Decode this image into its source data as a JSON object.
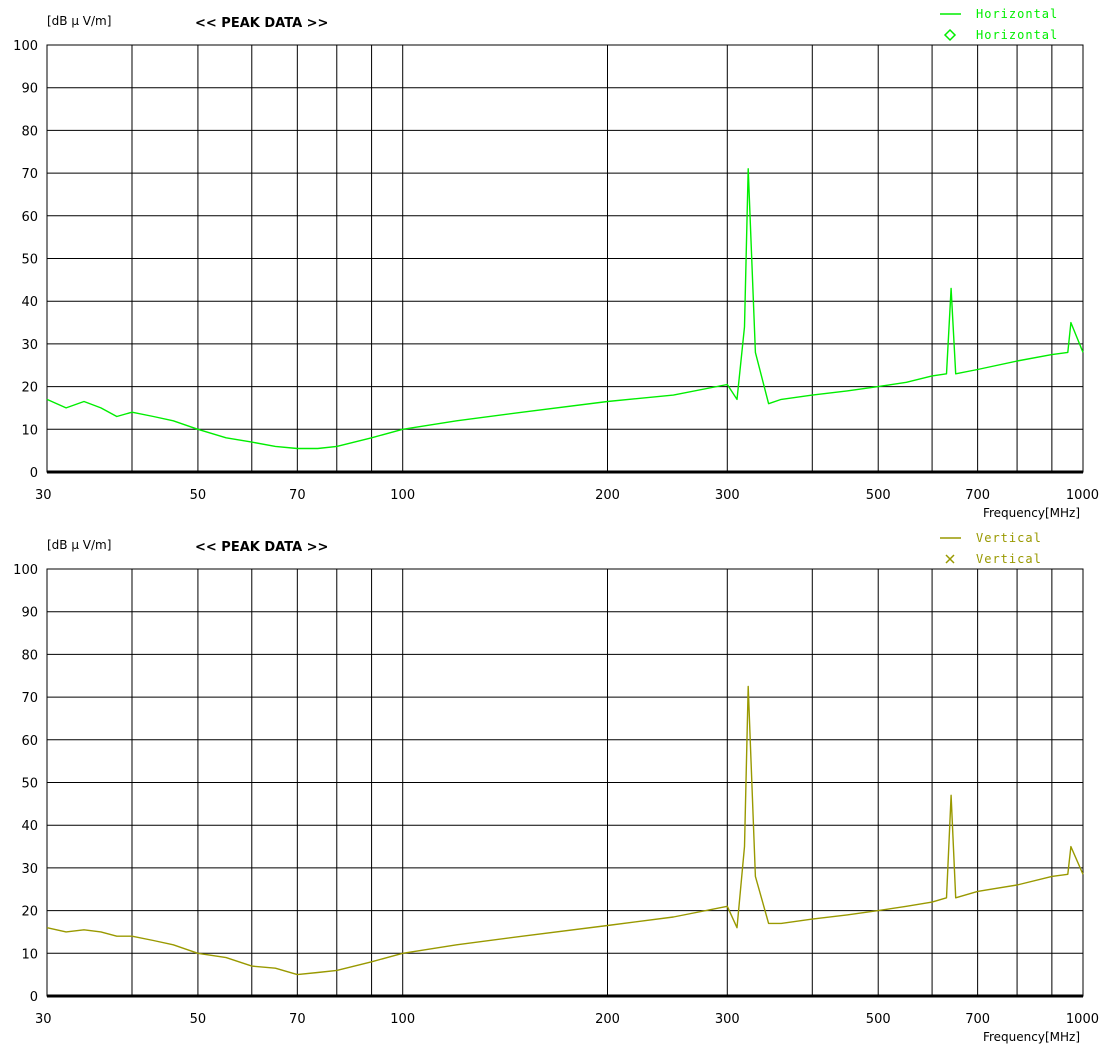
{
  "chart_data": [
    {
      "type": "line",
      "title": "<< PEAK DATA >>",
      "ylabel": "[dB μ V/m]",
      "xlabel": "Frequency[MHz]",
      "xscale": "log",
      "xlim": [
        30,
        1000
      ],
      "ylim": [
        0,
        100
      ],
      "grid": true,
      "legend_position": "top-right",
      "x_ticks": [
        "30",
        "50",
        "70",
        "100",
        "200",
        "300",
        "500",
        "700",
        "1000"
      ],
      "y_ticks": [
        "0",
        "10",
        "20",
        "30",
        "40",
        "50",
        "60",
        "70",
        "80",
        "90",
        "100"
      ],
      "legend": [
        {
          "marker": "line",
          "label": "Horizontal"
        },
        {
          "marker": "diamond",
          "label": "Horizontal"
        }
      ],
      "series": [
        {
          "name": "Horizontal",
          "color": "#00ee00",
          "x": [
            30,
            32,
            34,
            36,
            38,
            40,
            43,
            46,
            50,
            55,
            60,
            65,
            70,
            75,
            80,
            90,
            100,
            120,
            150,
            200,
            250,
            300,
            310,
            318,
            322,
            330,
            345,
            360,
            400,
            450,
            500,
            550,
            600,
            630,
            640,
            650,
            700,
            800,
            900,
            950,
            960,
            1000
          ],
          "y": [
            17,
            15,
            16.5,
            15,
            13,
            14,
            13,
            12,
            10,
            8,
            7,
            6,
            5.5,
            5.5,
            6,
            8,
            10,
            12,
            14,
            16.5,
            18,
            20.5,
            17,
            34,
            71,
            28,
            16,
            17,
            18,
            19,
            20,
            21,
            22.5,
            23,
            43,
            23,
            24,
            26,
            27.5,
            28,
            35,
            28
          ]
        }
      ]
    },
    {
      "type": "line",
      "title": "<< PEAK DATA >>",
      "ylabel": "[dB μ V/m]",
      "xlabel": "Frequency[MHz]",
      "xscale": "log",
      "xlim": [
        30,
        1000
      ],
      "ylim": [
        0,
        100
      ],
      "grid": true,
      "legend_position": "top-right",
      "x_ticks": [
        "30",
        "50",
        "70",
        "100",
        "200",
        "300",
        "500",
        "700",
        "1000"
      ],
      "y_ticks": [
        "0",
        "10",
        "20",
        "30",
        "40",
        "50",
        "60",
        "70",
        "80",
        "90",
        "100"
      ],
      "legend": [
        {
          "marker": "line",
          "label": "Vertical"
        },
        {
          "marker": "x",
          "label": "Vertical"
        }
      ],
      "series": [
        {
          "name": "Vertical",
          "color": "#999900",
          "x": [
            30,
            32,
            34,
            36,
            38,
            40,
            43,
            46,
            50,
            55,
            60,
            65,
            70,
            75,
            80,
            90,
            100,
            120,
            150,
            200,
            250,
            300,
            310,
            318,
            322,
            330,
            345,
            360,
            400,
            450,
            500,
            550,
            600,
            630,
            640,
            650,
            700,
            800,
            900,
            950,
            960,
            1000
          ],
          "y": [
            16,
            15,
            15.5,
            15,
            14,
            14,
            13,
            12,
            10,
            9,
            7,
            6.5,
            5,
            5.5,
            6,
            8,
            10,
            12,
            14,
            16.5,
            18.5,
            21,
            16,
            35,
            72.5,
            28,
            17,
            17,
            18,
            19,
            20,
            21,
            22,
            23,
            47,
            23,
            24.5,
            26,
            28,
            28.5,
            35,
            28.5
          ]
        }
      ]
    }
  ]
}
